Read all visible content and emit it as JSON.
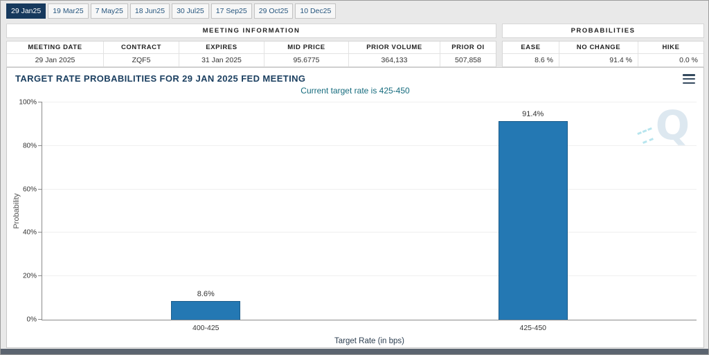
{
  "tabs": [
    {
      "label": "29 Jan25",
      "selected": true
    },
    {
      "label": "19 Mar25",
      "selected": false
    },
    {
      "label": "7 May25",
      "selected": false
    },
    {
      "label": "18 Jun25",
      "selected": false
    },
    {
      "label": "30 Jul25",
      "selected": false
    },
    {
      "label": "17 Sep25",
      "selected": false
    },
    {
      "label": "29 Oct25",
      "selected": false
    },
    {
      "label": "10 Dec25",
      "selected": false
    }
  ],
  "meeting_information": {
    "title": "MEETING INFORMATION",
    "headers": [
      "MEETING DATE",
      "CONTRACT",
      "EXPIRES",
      "MID PRICE",
      "PRIOR VOLUME",
      "PRIOR OI"
    ],
    "values": [
      "29 Jan 2025",
      "ZQF5",
      "31 Jan 2025",
      "95.6775",
      "364,133",
      "507,858"
    ]
  },
  "probabilities": {
    "title": "PROBABILITIES",
    "headers": [
      "EASE",
      "NO CHANGE",
      "HIKE"
    ],
    "values": [
      "8.6 %",
      "91.4 %",
      "0.0 %"
    ]
  },
  "chart_data": {
    "type": "bar",
    "title": "TARGET RATE PROBABILITIES FOR 29 JAN 2025 FED MEETING",
    "subtitle": "Current target rate is 425-450",
    "categories": [
      "400-425",
      "425-450"
    ],
    "values": [
      8.6,
      91.4
    ],
    "value_labels": [
      "8.6%",
      "91.4%"
    ],
    "xlabel": "Target Rate (in bps)",
    "ylabel": "Probability",
    "ylim": [
      0,
      100
    ],
    "ytick_labels": [
      "0%",
      "20%",
      "40%",
      "60%",
      "80%",
      "100%"
    ],
    "bar_color": "#2478b3",
    "grid": true,
    "legend": false
  },
  "branding": {
    "watermark_letter": "Q"
  },
  "colors": {
    "selected_tab": "#16395d",
    "bar": "#2478b3",
    "title": "#1b3f60",
    "subtitle": "#156b7d"
  }
}
